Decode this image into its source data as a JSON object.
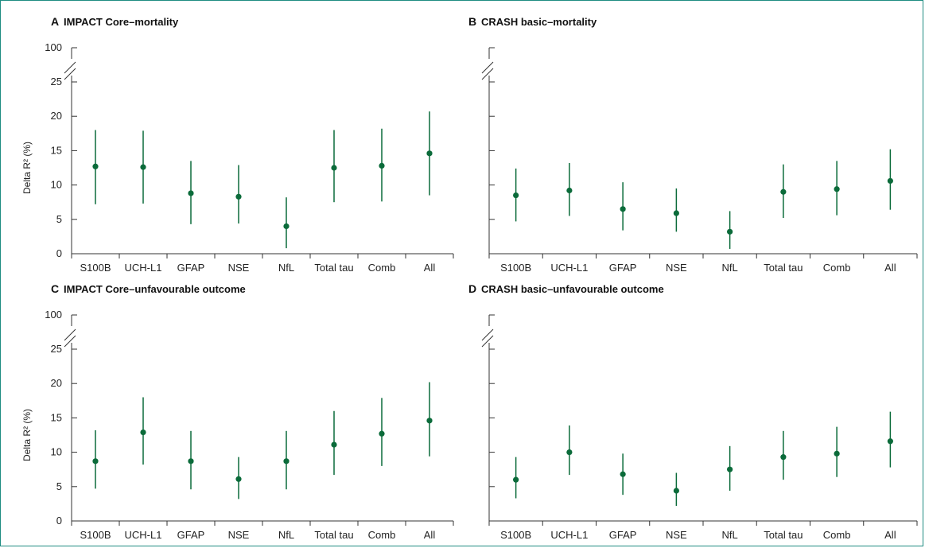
{
  "colors": {
    "point": "#0b6b3a",
    "axis": "#333333",
    "frame": "#1e8c82"
  },
  "chart_data": [
    {
      "type": "scatter",
      "letter": "A",
      "title": "IMPACT Core–mortality",
      "ylabel": "Delta R² (%)",
      "categories": [
        "S100B",
        "UCH-L1",
        "GFAP",
        "NSE",
        "NfL",
        "Total tau",
        "Comb",
        "All"
      ],
      "yticks": [
        "0",
        "5",
        "10",
        "15",
        "20",
        "25",
        "100"
      ],
      "ylim": [
        0,
        25
      ],
      "axis_break": true,
      "values": [
        12.7,
        12.6,
        8.8,
        8.3,
        4.0,
        12.5,
        12.8,
        14.6
      ],
      "lower": [
        7.2,
        7.3,
        4.3,
        4.4,
        0.8,
        7.5,
        7.6,
        8.5
      ],
      "upper": [
        18.0,
        17.9,
        13.5,
        12.9,
        8.2,
        18.0,
        18.2,
        20.7
      ]
    },
    {
      "type": "scatter",
      "letter": "B",
      "title": "CRASH basic–mortality",
      "ylabel": "",
      "categories": [
        "S100B",
        "UCH-L1",
        "GFAP",
        "NSE",
        "NfL",
        "Total tau",
        "Comb",
        "All"
      ],
      "yticks": [],
      "ylim": [
        0,
        25
      ],
      "axis_break": true,
      "values": [
        8.5,
        9.2,
        6.5,
        5.9,
        3.2,
        9.0,
        9.4,
        10.6
      ],
      "lower": [
        4.7,
        5.5,
        3.4,
        3.2,
        0.7,
        5.2,
        5.6,
        6.4
      ],
      "upper": [
        12.4,
        13.2,
        10.4,
        9.5,
        6.2,
        13.0,
        13.5,
        15.2
      ]
    },
    {
      "type": "scatter",
      "letter": "C",
      "title": "IMPACT Core–unfavourable outcome",
      "ylabel": "Delta R² (%)",
      "categories": [
        "S100B",
        "UCH-L1",
        "GFAP",
        "NSE",
        "NfL",
        "Total tau",
        "Comb",
        "All"
      ],
      "yticks": [
        "0",
        "5",
        "10",
        "15",
        "20",
        "25",
        "100"
      ],
      "ylim": [
        0,
        25
      ],
      "axis_break": true,
      "values": [
        8.7,
        12.9,
        8.7,
        6.1,
        8.7,
        11.1,
        12.7,
        14.6
      ],
      "lower": [
        4.7,
        8.2,
        4.6,
        3.2,
        4.6,
        6.7,
        8.0,
        9.4
      ],
      "upper": [
        13.2,
        18.0,
        13.1,
        9.3,
        13.1,
        16.0,
        17.9,
        20.2
      ]
    },
    {
      "type": "scatter",
      "letter": "D",
      "title": "CRASH basic–unfavourable outcome",
      "ylabel": "",
      "categories": [
        "S100B",
        "UCH-L1",
        "GFAP",
        "NSE",
        "NfL",
        "Total tau",
        "Comb",
        "All"
      ],
      "yticks": [],
      "ylim": [
        0,
        25
      ],
      "axis_break": true,
      "values": [
        6.0,
        10.0,
        6.8,
        4.4,
        7.5,
        9.3,
        9.8,
        11.6
      ],
      "lower": [
        3.3,
        6.7,
        3.8,
        2.2,
        4.4,
        6.0,
        6.4,
        7.8
      ],
      "upper": [
        9.3,
        13.9,
        9.8,
        7.0,
        10.9,
        13.1,
        13.7,
        15.9
      ]
    }
  ]
}
